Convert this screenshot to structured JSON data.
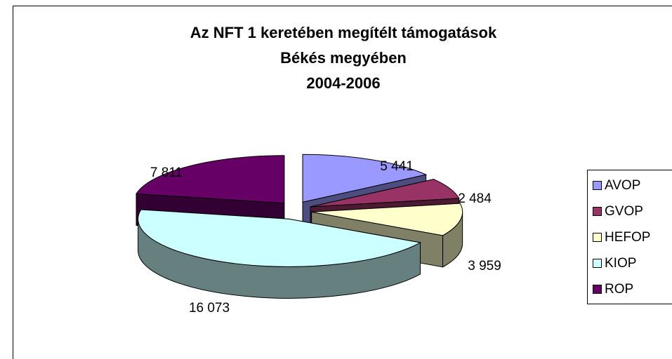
{
  "chart_data": {
    "type": "pie",
    "title": [
      "Az NFT 1 keretében megítélt támogatások",
      "Békés megyében",
      "2004-2006"
    ],
    "categories": [
      "AVOP",
      "GVOP",
      "HEFOP",
      "KIOP",
      "ROP"
    ],
    "values": [
      5441,
      2484,
      3959,
      16073,
      7811
    ],
    "value_labels": [
      "5 441",
      "2 484",
      "3 959",
      "16 073",
      "7 811"
    ],
    "colors": [
      "#9999ff",
      "#993366",
      "#ffffcc",
      "#ccffff",
      "#660066"
    ],
    "legend": "right"
  }
}
